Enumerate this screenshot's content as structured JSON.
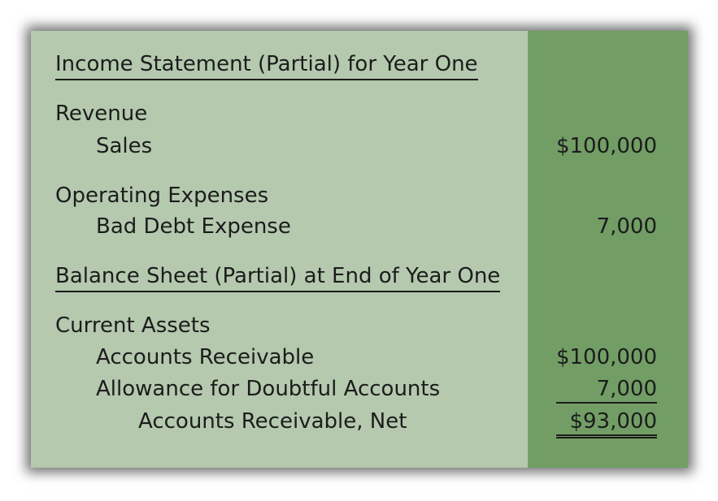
{
  "income_statement": {
    "heading": "Income Statement (Partial) for Year One",
    "revenue_label": "Revenue",
    "sales_label": "Sales",
    "sales_amount": "$100,000",
    "operating_expenses_label": "Operating Expenses",
    "bad_debt_label": "Bad Debt Expense",
    "bad_debt_amount": "7,000"
  },
  "balance_sheet": {
    "heading": "Balance Sheet (Partial) at End of Year One",
    "current_assets_label": "Current Assets",
    "ar_label": "Accounts Receivable",
    "ar_amount": "$100,000",
    "allowance_label": "Allowance for Doubtful Accounts",
    "allowance_amount": "7,000",
    "ar_net_label": "Accounts Receivable, Net",
    "ar_net_amount": "$93,000"
  },
  "colors": {
    "panel_background": "#b4c9ae",
    "amount_column": "#729e66",
    "text": "#1c1c1c"
  }
}
